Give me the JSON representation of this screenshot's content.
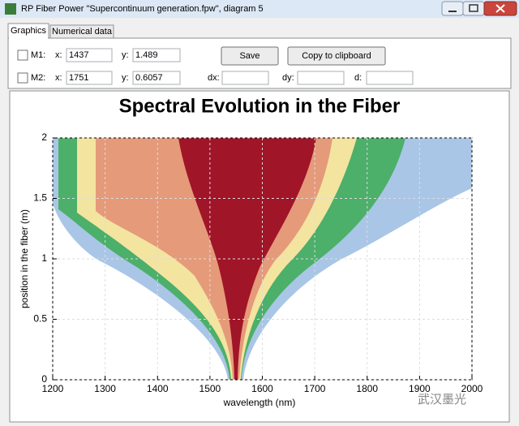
{
  "window": {
    "title": "RP Fiber Power \"Supercontinuum generation.fpw\", diagram 5",
    "tabs": [
      "Graphics",
      "Numerical data"
    ]
  },
  "markers": [
    {
      "label": "M1:",
      "x_label": "x:",
      "x": "1437",
      "y_label": "y:",
      "y": "1.489"
    },
    {
      "label": "M2:",
      "x_label": "x:",
      "x": "1751",
      "y_label": "y:",
      "y": "0.6057"
    }
  ],
  "buttons": [
    "Save",
    "Copy to clipboard"
  ],
  "deltas": [
    "dx:",
    "dy:",
    "d:"
  ],
  "chart_data": {
    "type": "heatmap",
    "title": "Spectral Evolution in the Fiber",
    "x_label": "wavelength (nm)",
    "y_label": "position in the fiber (m)",
    "xlim": [
      1200,
      2000
    ],
    "xticks": [
      1200,
      1300,
      1400,
      1500,
      1600,
      1700,
      1800,
      1900,
      2000
    ],
    "ylim": [
      0,
      2
    ],
    "yticks": [
      0,
      0.5,
      1,
      1.5,
      2
    ],
    "grid": true
  },
  "watermark": "武汉墨光"
}
